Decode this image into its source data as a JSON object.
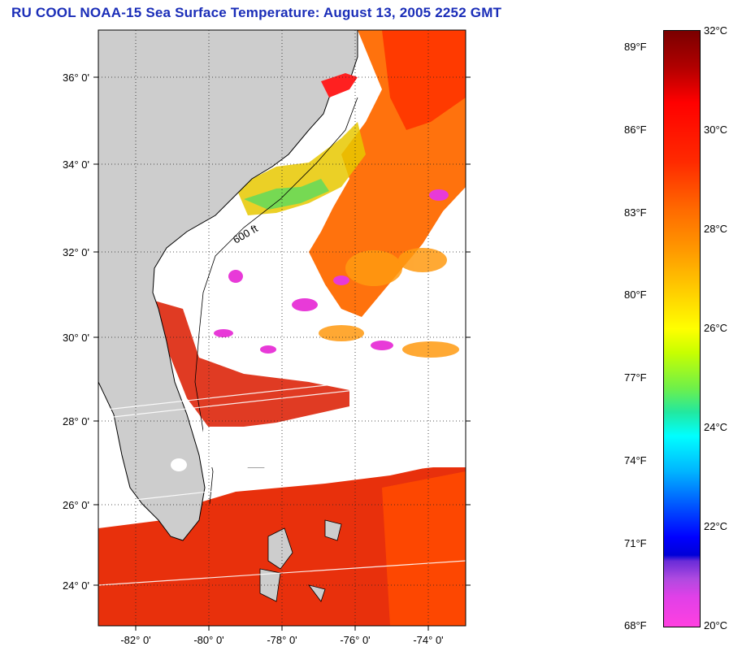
{
  "title": "RU COOL  NOAA-15  Sea Surface Temperature:  August 13, 2005 2252 GMT",
  "map": {
    "lat_labels": [
      "36° 0'",
      "34° 0'",
      "32° 0'",
      "30° 0'",
      "28° 0'",
      "26° 0'",
      "24° 0'"
    ],
    "lon_labels": [
      "-82° 0'",
      "-80° 0'",
      "-78° 0'",
      "-76° 0'",
      "-74° 0'"
    ],
    "isobath_label": "600 ft",
    "colors": {
      "land": "#cdcdcd",
      "cloud": "#ffffff",
      "frame": "#000000"
    }
  },
  "colorbar": {
    "fahrenheit": [
      "89°F",
      "86°F",
      "83°F",
      "80°F",
      "77°F",
      "74°F",
      "71°F",
      "68°F"
    ],
    "celsius": [
      "32°C",
      "30°C",
      "28°C",
      "26°C",
      "24°C",
      "22°C",
      "20°C"
    ]
  }
}
